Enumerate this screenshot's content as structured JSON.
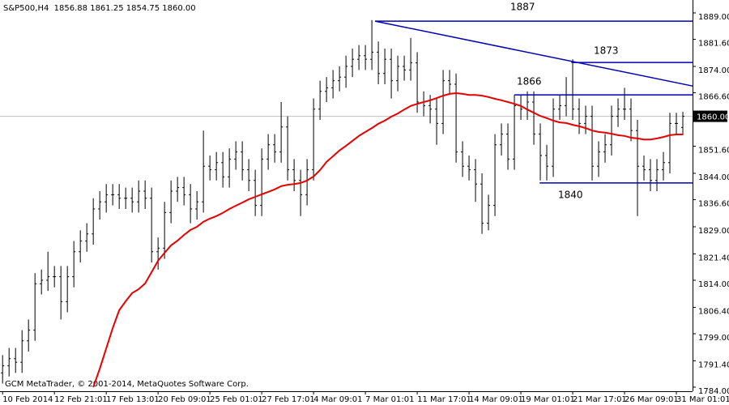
{
  "chart_data": {
    "type": "ohlc",
    "title": "S&P500,H4  1856.88 1861.25 1854.75 1860.00",
    "credit": "GCM MetaTrader, © 2001-2014, MetaQuotes Software Corp.",
    "color": "#000000",
    "categories": [
      "10 Feb 2014",
      null,
      null,
      null,
      null,
      null,
      null,
      null,
      "12 Feb 21:01",
      null,
      null,
      null,
      null,
      null,
      null,
      null,
      "17 Feb 13:01",
      null,
      null,
      null,
      null,
      null,
      null,
      null,
      "20 Feb 09:01",
      null,
      null,
      null,
      null,
      null,
      null,
      null,
      "25 Feb 01:01",
      null,
      null,
      null,
      null,
      null,
      null,
      null,
      "27 Feb 17:01",
      null,
      null,
      null,
      null,
      null,
      null,
      null,
      "4 Mar 09:01",
      null,
      null,
      null,
      null,
      null,
      null,
      null,
      "7 Mar 01:01",
      null,
      null,
      null,
      null,
      null,
      null,
      null,
      "11 Mar 17:01",
      null,
      null,
      null,
      null,
      null,
      null,
      null,
      "14 Mar 09:01",
      null,
      null,
      null,
      null,
      null,
      null,
      null,
      "19 Mar 01:01",
      null,
      null,
      null,
      null,
      null,
      null,
      null,
      "21 Mar 17:01",
      null,
      null,
      null,
      null,
      null,
      null,
      null,
      "26 Mar 09:01",
      null,
      null,
      null,
      null,
      null,
      null,
      null,
      "31 Mar 01:01",
      null
    ],
    "open": [
      1788,
      1790,
      1792,
      1791,
      1797,
      1800,
      1813,
      1814,
      1815,
      1815,
      1808,
      1815,
      1822,
      1825,
      1827,
      1834,
      1836,
      1838,
      1838,
      1837,
      1837,
      1836,
      1839,
      1837,
      1822,
      1823,
      1833,
      1839,
      1840,
      1838,
      1834,
      1836,
      1846,
      1845,
      1847,
      1843,
      1848,
      1850,
      1845,
      1842,
      1835,
      1848,
      1852,
      1850,
      1857,
      1845,
      1842,
      1838,
      1845,
      1862,
      1867,
      1868,
      1870,
      1871,
      1874,
      1876,
      1877,
      1876,
      1878,
      1872,
      1876,
      1870,
      1874,
      1873,
      1875,
      1864,
      1863,
      1862,
      1858,
      1870,
      1869,
      1850,
      1846,
      1845,
      1841,
      1830,
      1835,
      1852,
      1855,
      1848,
      1863,
      1862,
      1864,
      1855,
      1849,
      1846,
      1862,
      1863,
      1866,
      1862,
      1858,
      1860,
      1846,
      1850,
      1852,
      1860,
      1862,
      1862,
      1856,
      1846,
      1845,
      1842,
      1845,
      1847,
      1858,
      1856.88
    ],
    "high": [
      1793,
      1795,
      1795,
      1800,
      1803,
      1816,
      1817,
      1822,
      1818,
      1818,
      1818,
      1825,
      1828,
      1830,
      1837,
      1839,
      1841,
      1841,
      1841,
      1840,
      1840,
      1842,
      1842,
      1840,
      1826,
      1836,
      1842,
      1843,
      1843,
      1841,
      1839,
      1856,
      1849,
      1850,
      1850,
      1851,
      1853,
      1853,
      1848,
      1845,
      1851,
      1855,
      1855,
      1864,
      1860,
      1848,
      1845,
      1848,
      1865,
      1870,
      1871,
      1873,
      1874,
      1877,
      1879,
      1880,
      1880,
      1887,
      1881,
      1879,
      1879,
      1877,
      1877,
      1882,
      1878,
      1867,
      1866,
      1865,
      1873,
      1873,
      1872,
      1853,
      1849,
      1848,
      1844,
      1838,
      1855,
      1858,
      1858,
      1866,
      1866,
      1867,
      1867,
      1858,
      1852,
      1865,
      1866,
      1871,
      1876,
      1865,
      1863,
      1863,
      1853,
      1855,
      1863,
      1865,
      1868,
      1865,
      1859,
      1849,
      1848,
      1848,
      1850,
      1861,
      1861,
      1861.25
    ],
    "low": [
      1785,
      1787,
      1788,
      1788,
      1794,
      1797,
      1810,
      1811,
      1812,
      1803,
      1805,
      1812,
      1819,
      1822,
      1824,
      1831,
      1833,
      1835,
      1834,
      1834,
      1833,
      1833,
      1834,
      1819,
      1817,
      1820,
      1830,
      1836,
      1835,
      1830,
      1831,
      1833,
      1842,
      1842,
      1840,
      1840,
      1845,
      1842,
      1839,
      1832,
      1832,
      1845,
      1847,
      1847,
      1842,
      1839,
      1832,
      1835,
      1842,
      1859,
      1864,
      1865,
      1867,
      1868,
      1871,
      1873,
      1873,
      1873,
      1869,
      1869,
      1865,
      1867,
      1870,
      1870,
      1861,
      1860,
      1858,
      1852,
      1855,
      1866,
      1847,
      1843,
      1842,
      1836,
      1827,
      1828,
      1832,
      1849,
      1845,
      1845,
      1859,
      1859,
      1852,
      1842,
      1842,
      1843,
      1859,
      1860,
      1859,
      1855,
      1855,
      1842,
      1843,
      1847,
      1849,
      1857,
      1859,
      1853,
      1832,
      1842,
      1839,
      1839,
      1842,
      1844,
      1855,
      1854.75
    ],
    "close": [
      1790,
      1792,
      1791,
      1797,
      1800,
      1813,
      1814,
      1815,
      1815,
      1808,
      1815,
      1822,
      1825,
      1827,
      1834,
      1836,
      1838,
      1838,
      1837,
      1837,
      1836,
      1839,
      1837,
      1822,
      1823,
      1833,
      1839,
      1840,
      1838,
      1834,
      1836,
      1846,
      1845,
      1847,
      1843,
      1848,
      1850,
      1845,
      1842,
      1835,
      1848,
      1852,
      1850,
      1857,
      1845,
      1842,
      1838,
      1845,
      1862,
      1867,
      1868,
      1870,
      1871,
      1874,
      1876,
      1877,
      1876,
      1878,
      1872,
      1876,
      1870,
      1874,
      1873,
      1875,
      1864,
      1863,
      1862,
      1858,
      1870,
      1869,
      1850,
      1846,
      1845,
      1841,
      1830,
      1835,
      1852,
      1855,
      1848,
      1863,
      1862,
      1864,
      1855,
      1849,
      1846,
      1862,
      1863,
      1866,
      1862,
      1858,
      1860,
      1846,
      1850,
      1852,
      1860,
      1862,
      1862,
      1856,
      1846,
      1845,
      1842,
      1845,
      1847,
      1858,
      1858,
      1860
    ],
    "ma": {
      "color": "#e60000",
      "values": [
        null,
        null,
        null,
        null,
        null,
        null,
        null,
        null,
        null,
        null,
        null,
        null,
        null,
        null,
        1784,
        1789.2,
        1794.9,
        1800.6,
        1805.6,
        1808.1,
        1810.4,
        1811.5,
        1813.1,
        1816.3,
        1819.5,
        1821.7,
        1823.8,
        1825.1,
        1826.7,
        1828.1,
        1829,
        1830.4,
        1831.3,
        1832,
        1832.9,
        1834,
        1834.9,
        1835.8,
        1836.7,
        1837.4,
        1838.1,
        1838.8,
        1839.5,
        1840.4,
        1840.8,
        1841,
        1841.3,
        1842,
        1843.1,
        1844.9,
        1847.2,
        1848.8,
        1850.4,
        1851.7,
        1853.1,
        1854.5,
        1855.6,
        1856.7,
        1857.9,
        1858.8,
        1859.9,
        1860.8,
        1861.9,
        1862.9,
        1863.5,
        1864,
        1864.5,
        1865.1,
        1865.8,
        1866.3,
        1866.5,
        1866.3,
        1866,
        1866,
        1865.8,
        1865.4,
        1864.9,
        1864.5,
        1864,
        1863.5,
        1862.9,
        1861.9,
        1861,
        1860.1,
        1859.5,
        1858.8,
        1858.3,
        1858.1,
        1857.6,
        1857.2,
        1856.7,
        1856,
        1855.6,
        1855.4,
        1855.1,
        1854.7,
        1854.5,
        1854,
        1853.8,
        1853.5,
        1853.5,
        1853.8,
        1854.2,
        1854.7,
        1854.9,
        1854.9
      ]
    },
    "levels": {
      "color": "#0000b4",
      "lines": [
        {
          "start": 57.5,
          "value": 1886.7
        },
        {
          "start": 57.5,
          "value": 1886.7,
          "end": 1868.5
        },
        {
          "start": 87.8,
          "value": 1875.1
        },
        {
          "start": 79,
          "value": 1866
        },
        {
          "start": 82.9,
          "value": 1841.3
        }
      ]
    },
    "annotations": [
      "1887",
      "1873",
      "1866",
      "1840"
    ],
    "last": {
      "value": 1860,
      "label": "1860.00"
    },
    "xlim": [
      -0.4,
      106.5
    ],
    "ylim": [
      1782.86,
      1892.63
    ],
    "yticks": [
      {
        "value": 1784,
        "label": "1784.00"
      },
      {
        "value": 1791.4,
        "label": "1791.40"
      },
      {
        "value": 1799,
        "label": "1799.00"
      },
      {
        "value": 1806.4,
        "label": "1806.40"
      },
      {
        "value": 1814,
        "label": "1814.00"
      },
      {
        "value": 1821.4,
        "label": "1821.40"
      },
      {
        "value": 1829,
        "label": "1829.00"
      },
      {
        "value": 1836.6,
        "label": "1836.60"
      },
      {
        "value": 1844,
        "label": "1844.00"
      },
      {
        "value": 1851.6,
        "label": "1851.60"
      },
      {
        "value": 1866.6,
        "label": "1866.60"
      },
      {
        "value": 1874,
        "label": "1874.00"
      },
      {
        "value": 1881.6,
        "label": "1881.60"
      },
      {
        "value": 1889,
        "label": "1889.00"
      }
    ]
  }
}
